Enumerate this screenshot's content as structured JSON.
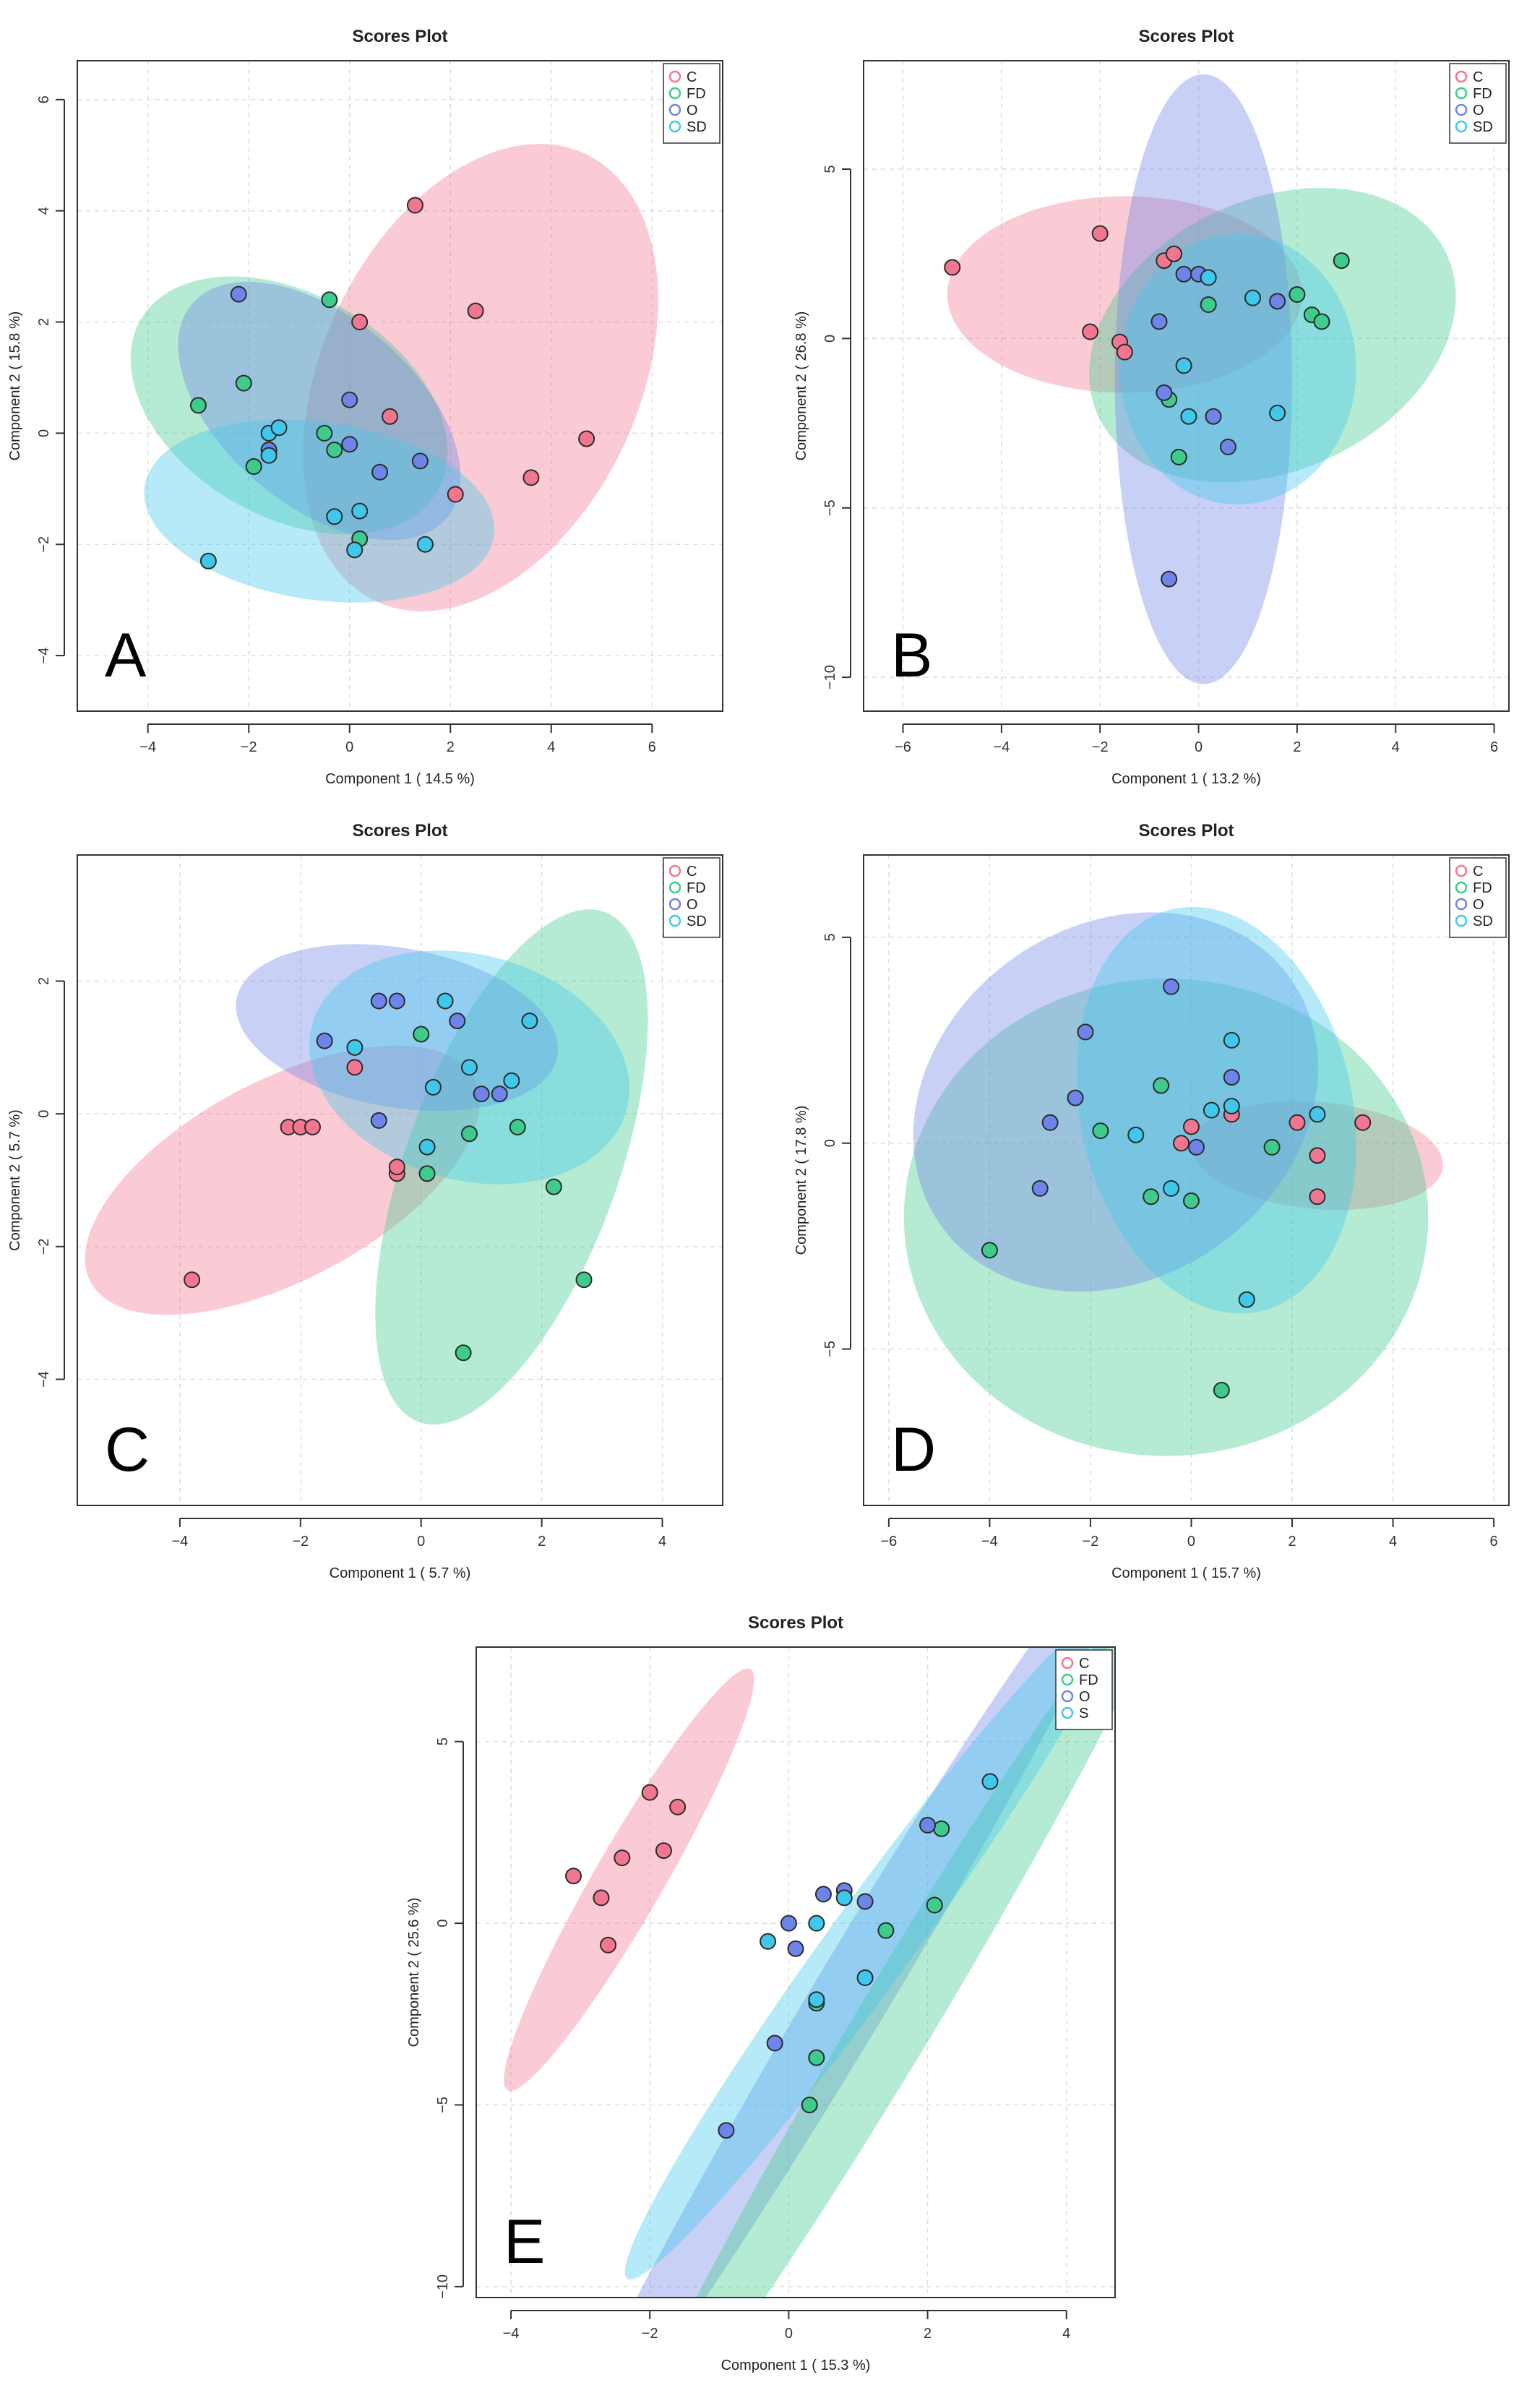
{
  "figure": {
    "palette": {
      "C": "#f2768f",
      "FD": "#3fcb8b",
      "O": "#6f84e8",
      "SD": "#40c8ec",
      "S": "#40c8ec"
    }
  },
  "chart_data": [
    {
      "id": "A",
      "type": "scatter",
      "title": "Scores Plot",
      "panel_label": "A",
      "xlabel": "Component 1 ( 14.5 %)",
      "ylabel": "Component 2 ( 15.8 %)",
      "xlim": [
        -5.4,
        7.4
      ],
      "ylim": [
        -5,
        6.7
      ],
      "xticks": [
        -4,
        -2,
        0,
        2,
        4,
        6
      ],
      "yticks": [
        -4,
        -2,
        0,
        2,
        4,
        6
      ],
      "legend": [
        "C",
        "FD",
        "O",
        "SD"
      ],
      "ellipses": [
        {
          "group": "C",
          "cx": 2.6,
          "cy": 1.0,
          "rx": 4.9,
          "ry": 2.85,
          "angle": 65
        },
        {
          "group": "FD",
          "cx": -1.2,
          "cy": 0.5,
          "rx": 3.4,
          "ry": 2.0,
          "angle": -30
        },
        {
          "group": "O",
          "cx": -0.6,
          "cy": 0.4,
          "rx": 3.3,
          "ry": 1.7,
          "angle": -40
        },
        {
          "group": "SD",
          "cx": -0.6,
          "cy": -1.4,
          "rx": 3.5,
          "ry": 1.6,
          "angle": -8
        }
      ],
      "points": [
        {
          "group": "C",
          "x": 1.3,
          "y": 4.1
        },
        {
          "group": "C",
          "x": 2.5,
          "y": 2.2
        },
        {
          "group": "C",
          "x": 0.2,
          "y": 2.0
        },
        {
          "group": "C",
          "x": 0.8,
          "y": 0.3
        },
        {
          "group": "C",
          "x": 4.7,
          "y": -0.1
        },
        {
          "group": "C",
          "x": 3.6,
          "y": -0.8
        },
        {
          "group": "C",
          "x": 2.1,
          "y": -1.1
        },
        {
          "group": "FD",
          "x": -0.4,
          "y": 2.4
        },
        {
          "group": "FD",
          "x": -2.1,
          "y": 0.9
        },
        {
          "group": "FD",
          "x": -3.0,
          "y": 0.5
        },
        {
          "group": "FD",
          "x": -1.9,
          "y": -0.6
        },
        {
          "group": "FD",
          "x": -0.5,
          "y": 0.0
        },
        {
          "group": "FD",
          "x": -0.3,
          "y": -0.3
        },
        {
          "group": "FD",
          "x": 0.2,
          "y": -1.9
        },
        {
          "group": "O",
          "x": -2.2,
          "y": 2.5
        },
        {
          "group": "O",
          "x": 0.0,
          "y": 0.6
        },
        {
          "group": "O",
          "x": 0.0,
          "y": -0.2
        },
        {
          "group": "O",
          "x": -1.6,
          "y": -0.3
        },
        {
          "group": "O",
          "x": 0.6,
          "y": -0.7
        },
        {
          "group": "O",
          "x": 1.4,
          "y": -0.5
        },
        {
          "group": "SD",
          "x": -1.6,
          "y": 0.0
        },
        {
          "group": "SD",
          "x": -1.4,
          "y": 0.1
        },
        {
          "group": "SD",
          "x": -1.6,
          "y": -0.4
        },
        {
          "group": "SD",
          "x": 0.2,
          "y": -1.4
        },
        {
          "group": "SD",
          "x": -0.3,
          "y": -1.5
        },
        {
          "group": "SD",
          "x": 0.1,
          "y": -2.1
        },
        {
          "group": "SD",
          "x": 1.5,
          "y": -2.0
        },
        {
          "group": "SD",
          "x": -2.8,
          "y": -2.3
        }
      ]
    },
    {
      "id": "B",
      "type": "scatter",
      "title": "Scores Plot",
      "panel_label": "B",
      "xlabel": "Component 1 ( 13.2 %)",
      "ylabel": "Component 2 ( 26.8 %)",
      "xlim": [
        -6.8,
        6.3
      ],
      "ylim": [
        -11.0,
        8.2
      ],
      "xticks": [
        -6,
        -4,
        -2,
        0,
        2,
        4,
        6
      ],
      "yticks": [
        -10,
        -5,
        0,
        5
      ],
      "legend": [
        "C",
        "FD",
        "O",
        "SD"
      ],
      "ellipses": [
        {
          "group": "C",
          "cx": -1.5,
          "cy": 1.3,
          "rx": 3.6,
          "ry": 2.9,
          "angle": 0
        },
        {
          "group": "FD",
          "cx": 1.5,
          "cy": 0.1,
          "rx": 3.9,
          "ry": 4.0,
          "angle": 25
        },
        {
          "group": "O",
          "cx": 0.1,
          "cy": -1.2,
          "rx": 1.8,
          "ry": 9.0,
          "angle": 0
        },
        {
          "group": "SD",
          "cx": 0.8,
          "cy": -0.9,
          "rx": 2.4,
          "ry": 4.0,
          "angle": 0
        }
      ],
      "points": [
        {
          "group": "C",
          "x": -5.0,
          "y": 2.1
        },
        {
          "group": "C",
          "x": -2.0,
          "y": 3.1
        },
        {
          "group": "C",
          "x": -2.2,
          "y": 0.2
        },
        {
          "group": "C",
          "x": -1.6,
          "y": -0.1
        },
        {
          "group": "C",
          "x": -1.5,
          "y": -0.4
        },
        {
          "group": "C",
          "x": -0.7,
          "y": 2.3
        },
        {
          "group": "C",
          "x": -0.5,
          "y": 2.5
        },
        {
          "group": "FD",
          "x": 0.2,
          "y": 1.0
        },
        {
          "group": "FD",
          "x": 2.0,
          "y": 1.3
        },
        {
          "group": "FD",
          "x": 2.9,
          "y": 2.3
        },
        {
          "group": "FD",
          "x": 2.3,
          "y": 0.7
        },
        {
          "group": "FD",
          "x": 2.5,
          "y": 0.5
        },
        {
          "group": "FD",
          "x": -0.6,
          "y": -1.8
        },
        {
          "group": "FD",
          "x": -0.4,
          "y": -3.5
        },
        {
          "group": "O",
          "x": -0.3,
          "y": 1.9
        },
        {
          "group": "O",
          "x": 0.0,
          "y": 1.9
        },
        {
          "group": "O",
          "x": -0.8,
          "y": 0.5
        },
        {
          "group": "O",
          "x": -0.7,
          "y": -1.6
        },
        {
          "group": "O",
          "x": 0.3,
          "y": -2.3
        },
        {
          "group": "O",
          "x": 0.6,
          "y": -3.2
        },
        {
          "group": "O",
          "x": -0.6,
          "y": -7.1
        },
        {
          "group": "O",
          "x": 1.6,
          "y": 1.1
        },
        {
          "group": "SD",
          "x": 0.2,
          "y": 1.8
        },
        {
          "group": "SD",
          "x": 1.1,
          "y": 1.2
        },
        {
          "group": "SD",
          "x": -0.3,
          "y": -0.8
        },
        {
          "group": "SD",
          "x": -0.2,
          "y": -2.3
        },
        {
          "group": "SD",
          "x": 1.6,
          "y": -2.2
        }
      ]
    },
    {
      "id": "C",
      "type": "scatter",
      "title": "Scores Plot",
      "panel_label": "C",
      "xlabel": "Component 1 ( 5.7 %)",
      "ylabel": "Component 2 ( 5.7 %)",
      "xlim": [
        -5.7,
        5.0
      ],
      "ylim": [
        -5.9,
        3.9
      ],
      "xticks": [
        -4,
        -2,
        0,
        2,
        4
      ],
      "yticks": [
        -4,
        -2,
        0,
        2
      ],
      "legend": [
        "C",
        "FD",
        "O",
        "SD"
      ],
      "ellipses": [
        {
          "group": "C",
          "cx": -2.3,
          "cy": -1.0,
          "rx": 3.6,
          "ry": 1.5,
          "angle": 28
        },
        {
          "group": "FD",
          "cx": 1.5,
          "cy": -0.8,
          "rx": 4.5,
          "ry": 1.6,
          "angle": 70
        },
        {
          "group": "O",
          "cx": -0.4,
          "cy": 1.3,
          "rx": 2.7,
          "ry": 1.2,
          "angle": -10
        },
        {
          "group": "SD",
          "cx": 0.8,
          "cy": 0.7,
          "rx": 2.7,
          "ry": 1.7,
          "angle": -15
        }
      ],
      "points": [
        {
          "group": "C",
          "x": -3.8,
          "y": -2.5
        },
        {
          "group": "C",
          "x": -2.2,
          "y": -0.2
        },
        {
          "group": "C",
          "x": -2.0,
          "y": -0.2
        },
        {
          "group": "C",
          "x": -1.8,
          "y": -0.2
        },
        {
          "group": "C",
          "x": -1.1,
          "y": 0.7
        },
        {
          "group": "C",
          "x": -0.4,
          "y": -0.9
        },
        {
          "group": "C",
          "x": -0.4,
          "y": -0.8
        },
        {
          "group": "FD",
          "x": 0.0,
          "y": 1.2
        },
        {
          "group": "FD",
          "x": 0.8,
          "y": -0.3
        },
        {
          "group": "FD",
          "x": 1.6,
          "y": -0.2
        },
        {
          "group": "FD",
          "x": 0.1,
          "y": -0.9
        },
        {
          "group": "FD",
          "x": 2.2,
          "y": -1.1
        },
        {
          "group": "FD",
          "x": 2.7,
          "y": -2.5
        },
        {
          "group": "FD",
          "x": 0.7,
          "y": -3.6
        },
        {
          "group": "O",
          "x": -1.6,
          "y": 1.1
        },
        {
          "group": "O",
          "x": -0.7,
          "y": 1.7
        },
        {
          "group": "O",
          "x": -0.4,
          "y": 1.7
        },
        {
          "group": "O",
          "x": 0.6,
          "y": 1.4
        },
        {
          "group": "O",
          "x": 1.0,
          "y": 0.3
        },
        {
          "group": "O",
          "x": 1.3,
          "y": 0.3
        },
        {
          "group": "O",
          "x": -0.7,
          "y": -0.1
        },
        {
          "group": "SD",
          "x": -1.1,
          "y": 1.0
        },
        {
          "group": "SD",
          "x": 0.4,
          "y": 1.7
        },
        {
          "group": "SD",
          "x": 0.8,
          "y": 0.7
        },
        {
          "group": "SD",
          "x": 0.2,
          "y": 0.4
        },
        {
          "group": "SD",
          "x": 1.5,
          "y": 0.5
        },
        {
          "group": "SD",
          "x": 1.8,
          "y": 1.4
        },
        {
          "group": "SD",
          "x": 0.1,
          "y": -0.5
        }
      ]
    },
    {
      "id": "D",
      "type": "scatter",
      "title": "Scores Plot",
      "panel_label": "D",
      "xlabel": "Component 1 ( 15.7 %)",
      "ylabel": "Component 2 ( 17.8 %)",
      "xlim": [
        -6.5,
        6.3
      ],
      "ylim": [
        -8.8,
        7.0
      ],
      "xticks": [
        -6,
        -4,
        -2,
        0,
        2,
        4,
        6
      ],
      "yticks": [
        -5,
        0,
        5
      ],
      "legend": [
        "C",
        "FD",
        "O",
        "SD"
      ],
      "ellipses": [
        {
          "group": "C",
          "cx": 2.5,
          "cy": -0.3,
          "rx": 2.5,
          "ry": 1.3,
          "angle": -5
        },
        {
          "group": "FD",
          "cx": -0.5,
          "cy": -1.8,
          "rx": 5.2,
          "ry": 5.8,
          "angle": 0
        },
        {
          "group": "O",
          "cx": -1.5,
          "cy": 1.0,
          "rx": 3.5,
          "ry": 5.2,
          "angle": -55
        },
        {
          "group": "SD",
          "cx": 0.5,
          "cy": 0.8,
          "rx": 2.7,
          "ry": 5.0,
          "angle": 12
        }
      ],
      "points": [
        {
          "group": "C",
          "x": -0.2,
          "y": 0.0
        },
        {
          "group": "C",
          "x": 0.0,
          "y": 0.4
        },
        {
          "group": "C",
          "x": 0.8,
          "y": 0.7
        },
        {
          "group": "C",
          "x": 2.1,
          "y": 0.5
        },
        {
          "group": "C",
          "x": 3.4,
          "y": 0.5
        },
        {
          "group": "C",
          "x": 2.5,
          "y": -0.3
        },
        {
          "group": "C",
          "x": 2.5,
          "y": -1.3
        },
        {
          "group": "FD",
          "x": -0.6,
          "y": 1.4
        },
        {
          "group": "FD",
          "x": -1.8,
          "y": 0.3
        },
        {
          "group": "FD",
          "x": -0.8,
          "y": -1.3
        },
        {
          "group": "FD",
          "x": 0.0,
          "y": -1.4
        },
        {
          "group": "FD",
          "x": 1.6,
          "y": -0.1
        },
        {
          "group": "FD",
          "x": -4.0,
          "y": -2.6
        },
        {
          "group": "FD",
          "x": 0.6,
          "y": -6.0
        },
        {
          "group": "O",
          "x": -0.4,
          "y": 3.8
        },
        {
          "group": "O",
          "x": -2.1,
          "y": 2.7
        },
        {
          "group": "O",
          "x": -2.3,
          "y": 1.1
        },
        {
          "group": "O",
          "x": -2.8,
          "y": 0.5
        },
        {
          "group": "O",
          "x": -3.0,
          "y": -1.1
        },
        {
          "group": "O",
          "x": 0.8,
          "y": 1.6
        },
        {
          "group": "O",
          "x": 0.1,
          "y": -0.1
        },
        {
          "group": "SD",
          "x": 0.8,
          "y": 2.5
        },
        {
          "group": "SD",
          "x": 0.8,
          "y": 0.9
        },
        {
          "group": "SD",
          "x": 0.4,
          "y": 0.8
        },
        {
          "group": "SD",
          "x": 2.5,
          "y": 0.7
        },
        {
          "group": "SD",
          "x": -1.1,
          "y": 0.2
        },
        {
          "group": "SD",
          "x": -0.4,
          "y": -1.1
        },
        {
          "group": "SD",
          "x": 1.1,
          "y": -3.8
        }
      ]
    },
    {
      "id": "E",
      "type": "scatter",
      "title": "Scores Plot",
      "panel_label": "E",
      "xlabel": "Component 1 ( 15.3 %)",
      "ylabel": "Component 2 ( 25.6 %)",
      "xlim": [
        -4.5,
        4.7
      ],
      "ylim": [
        -10.3,
        7.6
      ],
      "xticks": [
        -4,
        -2,
        0,
        2,
        4
      ],
      "yticks": [
        -10,
        -5,
        0,
        5
      ],
      "legend": [
        "C",
        "FD",
        "O",
        "S"
      ],
      "ellipses": [
        {
          "group": "C",
          "cx": -2.3,
          "cy": 1.2,
          "rx": 3.5,
          "ry": 0.95,
          "angle": 60
        },
        {
          "group": "O",
          "cx": 0.9,
          "cy": -2.0,
          "rx": 8.0,
          "ry": 1.05,
          "angle": 59
        },
        {
          "group": "FD",
          "cx": 1.6,
          "cy": -2.5,
          "rx": 7.5,
          "ry": 1.05,
          "angle": 59
        },
        {
          "group": "S",
          "cx": 1.2,
          "cy": -0.5,
          "rx": 6.0,
          "ry": 1.15,
          "angle": 54
        }
      ],
      "points": [
        {
          "group": "C",
          "x": -2.0,
          "y": 3.6
        },
        {
          "group": "C",
          "x": -1.6,
          "y": 3.2
        },
        {
          "group": "C",
          "x": -2.4,
          "y": 1.8
        },
        {
          "group": "C",
          "x": -1.8,
          "y": 2.0
        },
        {
          "group": "C",
          "x": -3.1,
          "y": 1.3
        },
        {
          "group": "C",
          "x": -2.7,
          "y": 0.7
        },
        {
          "group": "C",
          "x": -2.6,
          "y": -0.6
        },
        {
          "group": "FD",
          "x": 1.4,
          "y": -0.2
        },
        {
          "group": "FD",
          "x": 2.1,
          "y": 0.5
        },
        {
          "group": "FD",
          "x": 2.2,
          "y": 2.6
        },
        {
          "group": "FD",
          "x": 0.4,
          "y": -2.2
        },
        {
          "group": "FD",
          "x": 0.4,
          "y": -3.7
        },
        {
          "group": "FD",
          "x": 0.3,
          "y": -5.0
        },
        {
          "group": "O",
          "x": 0.5,
          "y": 0.8
        },
        {
          "group": "O",
          "x": 0.8,
          "y": 0.9
        },
        {
          "group": "O",
          "x": 1.1,
          "y": 0.6
        },
        {
          "group": "O",
          "x": 0.0,
          "y": 0.0
        },
        {
          "group": "O",
          "x": 0.1,
          "y": -0.7
        },
        {
          "group": "O",
          "x": 2.0,
          "y": 2.7
        },
        {
          "group": "O",
          "x": -0.2,
          "y": -3.3
        },
        {
          "group": "O",
          "x": -0.9,
          "y": -5.7
        },
        {
          "group": "S",
          "x": 2.9,
          "y": 3.9
        },
        {
          "group": "S",
          "x": 0.8,
          "y": 0.7
        },
        {
          "group": "S",
          "x": 0.4,
          "y": 0.0
        },
        {
          "group": "S",
          "x": -0.3,
          "y": -0.5
        },
        {
          "group": "S",
          "x": 1.1,
          "y": -1.5
        },
        {
          "group": "S",
          "x": 0.4,
          "y": -2.1
        }
      ]
    }
  ]
}
